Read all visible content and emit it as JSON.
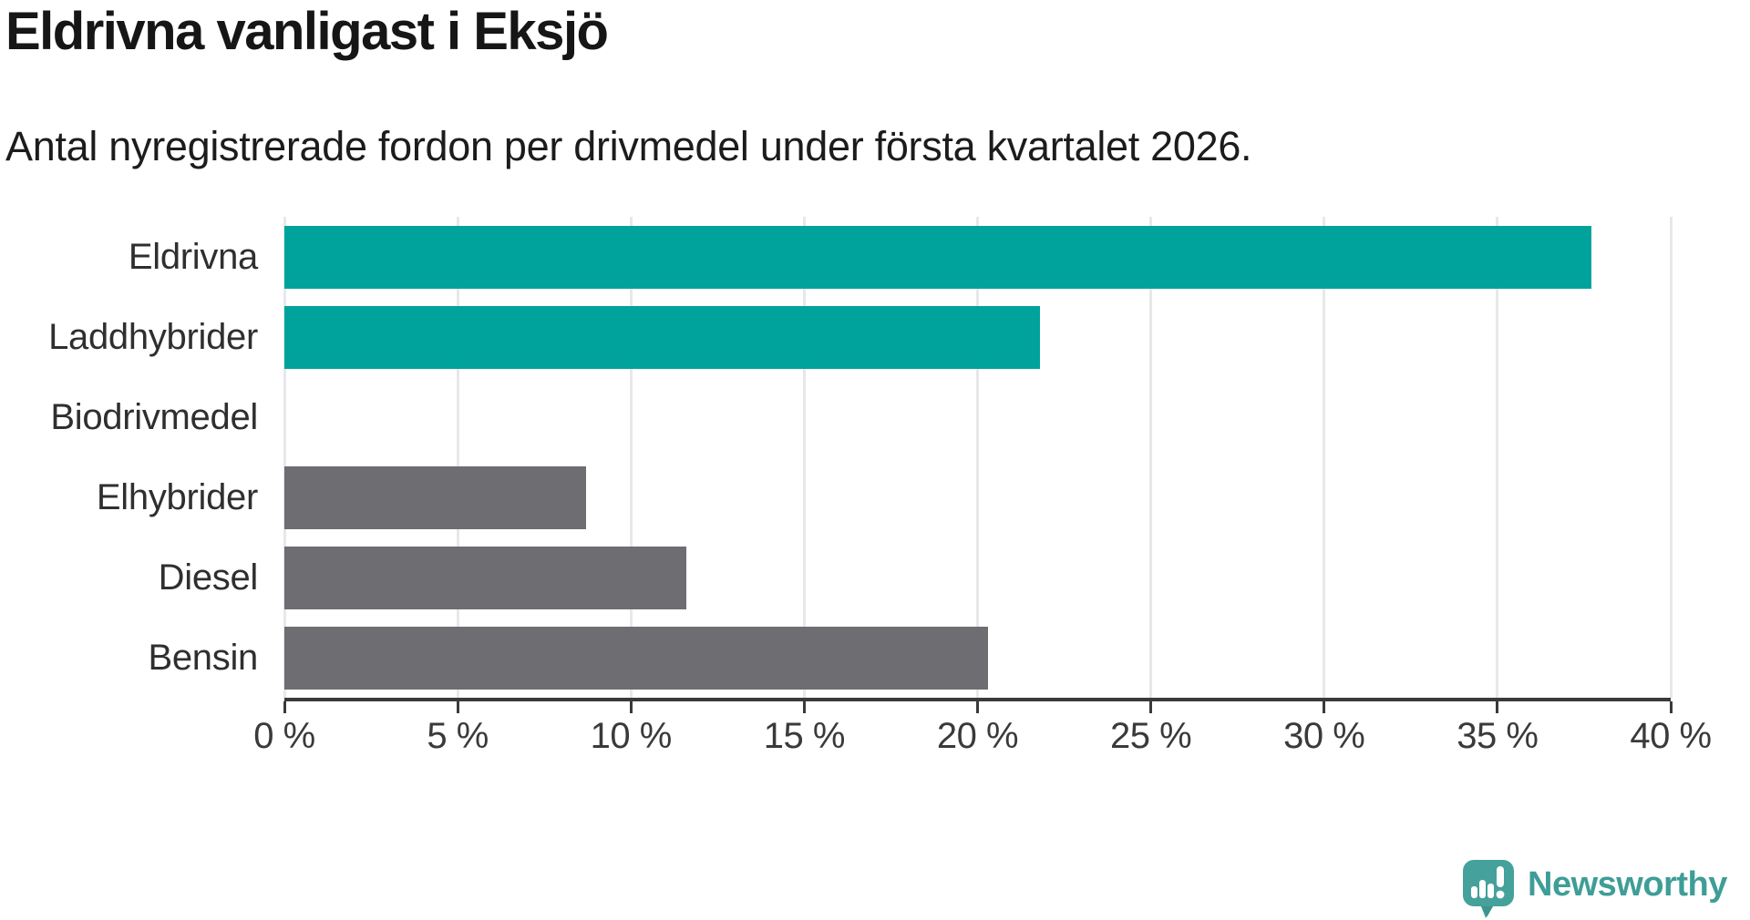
{
  "header": {
    "title": "Eldrivna vanligast i Eksjö",
    "subtitle": "Antal nyregistrerade fordon per drivmedel under första kvartalet 2026."
  },
  "chart_data": {
    "type": "bar",
    "orientation": "horizontal",
    "title": "Eldrivna vanligast i Eksjö",
    "subtitle": "Antal nyregistrerade fordon per drivmedel under första kvartalet 2026.",
    "categories": [
      "Eldrivna",
      "Laddhybrider",
      "Biodrivmedel",
      "Elhybrider",
      "Diesel",
      "Bensin"
    ],
    "values": [
      37.7,
      21.8,
      0,
      8.7,
      11.6,
      20.3
    ],
    "unit": "%",
    "bar_colors": [
      "#00a39b",
      "#00a39b",
      "#00a39b",
      "#6d6d72",
      "#6d6d72",
      "#6d6d72"
    ],
    "highlight_color": "#00a39b",
    "default_color": "#6d6d72",
    "xlabel": "",
    "ylabel": "",
    "xlim": [
      0,
      40
    ],
    "x_ticks": [
      {
        "value": 0,
        "label": "0 %"
      },
      {
        "value": 5,
        "label": "5 %"
      },
      {
        "value": 10,
        "label": "10 %"
      },
      {
        "value": 15,
        "label": "15 %"
      },
      {
        "value": 20,
        "label": "20 %"
      },
      {
        "value": 25,
        "label": "25 %"
      },
      {
        "value": 30,
        "label": "30 %"
      },
      {
        "value": 35,
        "label": "35 %"
      },
      {
        "value": 40,
        "label": "40 %"
      }
    ],
    "grid": "vertical-gridlines-on",
    "gridline_color": "#e8e8ea",
    "axis_color": "#3a3a3a",
    "legend": "none"
  },
  "branding": {
    "logo_text": "Newsworthy",
    "logo_color": "#3f9d97",
    "icon": "newsworthy-speech-bubble-chart-icon",
    "icon_color": "#45a19b"
  }
}
